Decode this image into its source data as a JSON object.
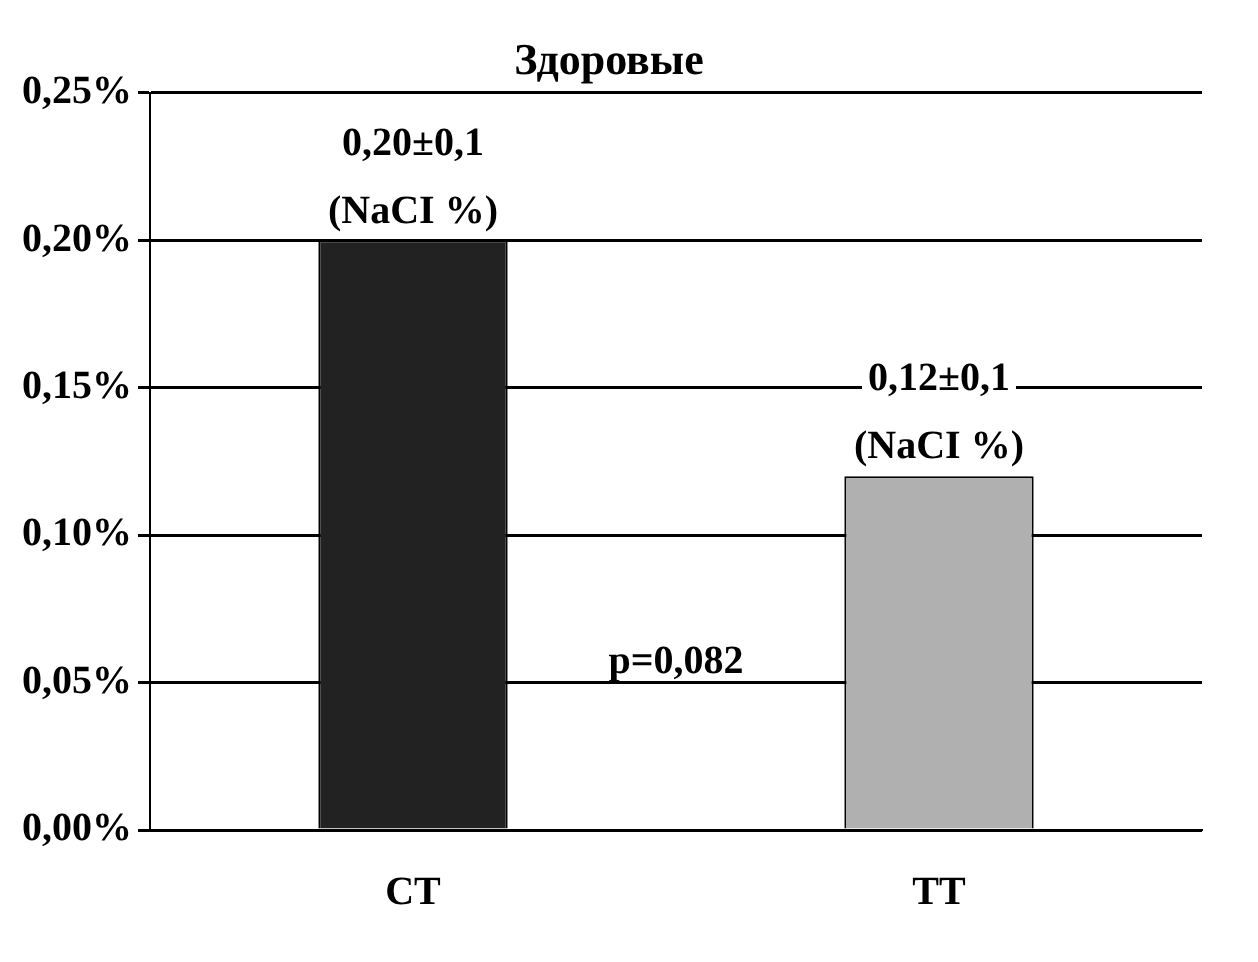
{
  "chart_data": {
    "type": "bar",
    "title": "Здоровые",
    "categories": [
      "СТ",
      "ТТ"
    ],
    "values": [
      0.2,
      0.12
    ],
    "colors": [
      "#222222",
      "#b0b0b0"
    ],
    "ylim": [
      0,
      0.25
    ],
    "yticks": [
      {
        "value": 0,
        "label": "0,00%"
      },
      {
        "value": 0.05,
        "label": "0,05%"
      },
      {
        "value": 0.1,
        "label": "0,10%"
      },
      {
        "value": 0.15,
        "label": "0,15%"
      },
      {
        "value": 0.2,
        "label": "0,20%"
      },
      {
        "value": 0.25,
        "label": "0,25%"
      }
    ],
    "grid": "y",
    "legend": false,
    "annotations": [
      {
        "text": "0,20±0,1\n(NaCI %)",
        "x": "СТ",
        "y": 0.2
      },
      {
        "text": "0,12±0,1\n(NaCI %)",
        "x": "ТТ",
        "y": 0.12
      },
      "p=0,082"
    ]
  }
}
